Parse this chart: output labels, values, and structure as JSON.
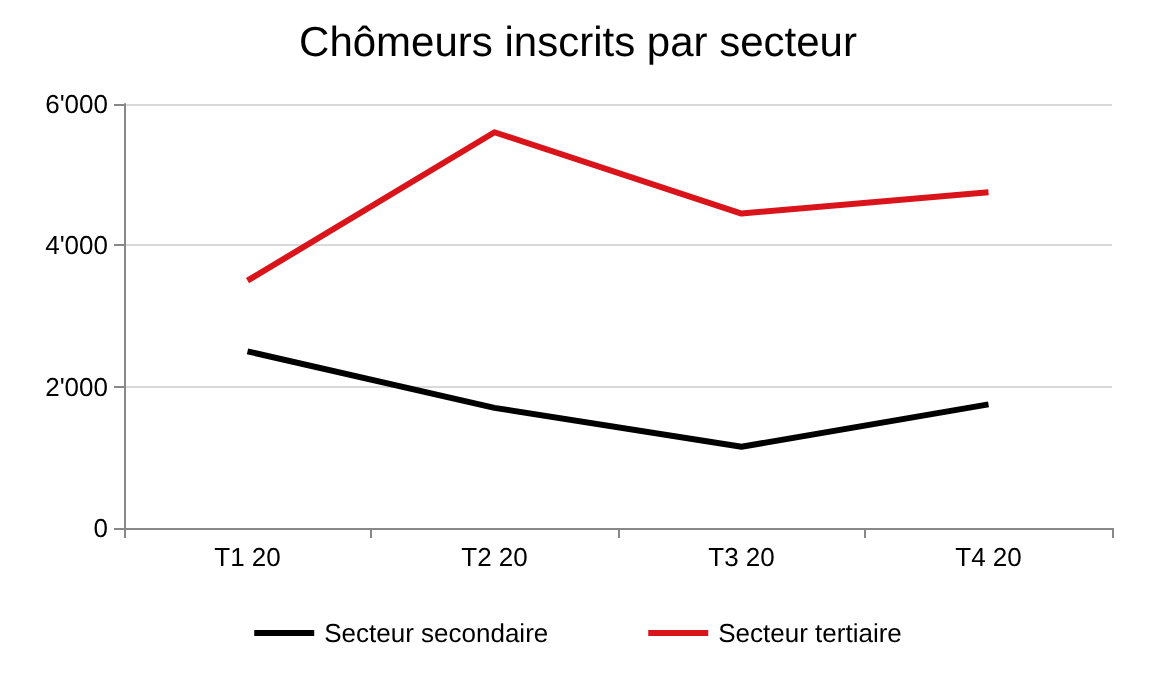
{
  "chart_data": {
    "type": "line",
    "title": "Chômeurs inscrits par secteur",
    "categories": [
      "T1 20",
      "T2 20",
      "T3 20",
      "T4 20"
    ],
    "series": [
      {
        "name": "Secteur secondaire",
        "color": "#000000",
        "values": [
          2500,
          1700,
          1150,
          1750
        ]
      },
      {
        "name": "Secteur tertiaire",
        "color": "#d9141b",
        "values": [
          3500,
          5600,
          4450,
          4750
        ]
      }
    ],
    "ylim": [
      0,
      6000
    ],
    "yticks": [
      {
        "value": 0,
        "label": "0"
      },
      {
        "value": 2000,
        "label": "2'000"
      },
      {
        "value": 4000,
        "label": "4'000"
      },
      {
        "value": 6000,
        "label": "6'000"
      }
    ],
    "grid": "y",
    "legend": "bottom",
    "marker": "none",
    "line_style": "solid"
  }
}
